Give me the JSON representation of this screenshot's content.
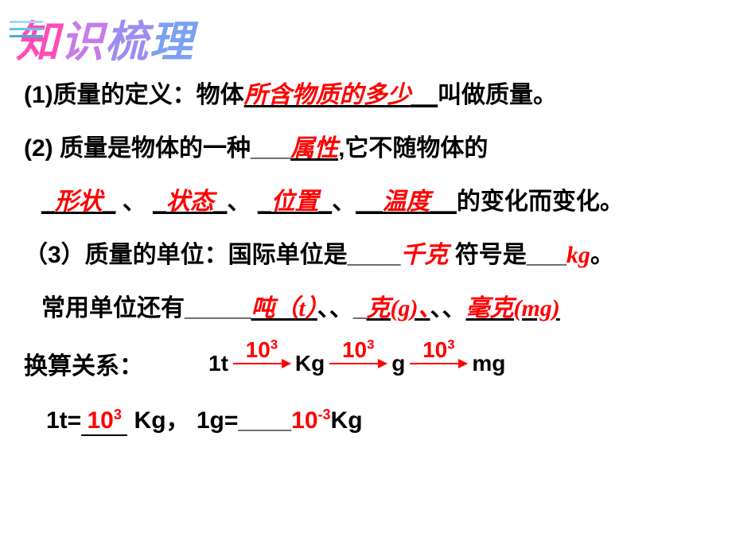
{
  "title": {
    "chars": [
      "知",
      "识",
      "梳",
      "理"
    ],
    "colors": [
      "#ff4db8",
      "#c77bea",
      "#9f8cef",
      "#7ca0f2"
    ],
    "stroke_colors": [
      "#a5d8f5",
      "#66c2e8",
      "#4aa8d8"
    ]
  },
  "q1": {
    "prefix": "(1)质量的定义：物体",
    "answer": "所含物质的多少",
    "suffix": "叫做质量。"
  },
  "q2": {
    "line1_prefix": "(2) 质量是物体的一种___",
    "line1_answer": "属性",
    "line1_suffix": ",它不随物体的",
    "blanks": [
      "形状",
      "状态",
      "位置",
      "温度"
    ],
    "line2_suffix": "的变化而变化。"
  },
  "q3": {
    "line1_prefix": "（3）质量的单位：国际单位是____",
    "ans1": "千克",
    "mid": " 符号是___",
    "ans2": "kg",
    "suffix1": "。",
    "line2_prefix": "常用单位还有_____",
    "u1": "吨（t）",
    "sep1": "、、_",
    "u2": "克(g)、",
    "sep2": "、、",
    "u3": "毫克(mg)"
  },
  "conversion": {
    "label": "换算关系：",
    "units": [
      "1t",
      "Kg",
      "g",
      "mg"
    ],
    "exponents": [
      "10",
      "10",
      "10"
    ],
    "exp_sup": "3",
    "arrow_color": "#ff0000"
  },
  "equations": {
    "eq1_lhs": "1t=",
    "eq1_val": "10",
    "eq1_sup": "3",
    "eq1_rhs": " Kg，",
    "eq2_lhs": "1g=____",
    "eq2_val": "10",
    "eq2_sup": "-3",
    "eq2_rhs": "Kg"
  },
  "colors": {
    "text": "#000000",
    "answer": "#ff0000",
    "background": "#ffffff"
  }
}
